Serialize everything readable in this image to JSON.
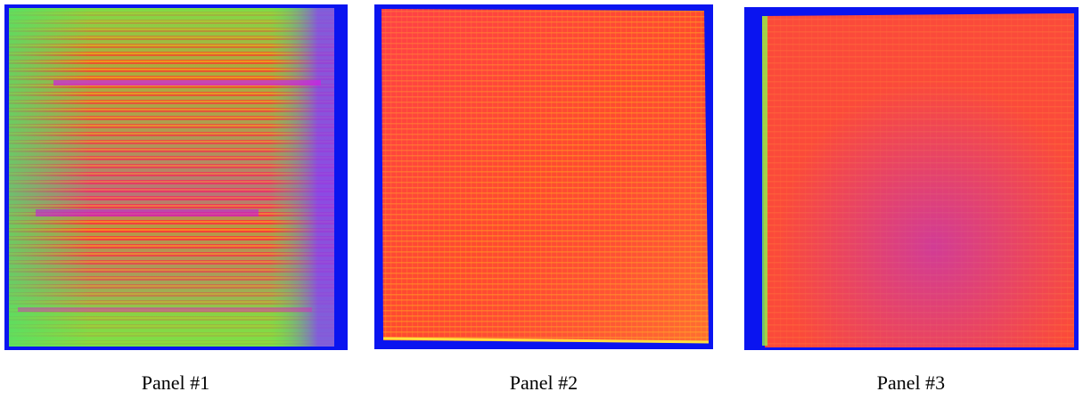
{
  "panels": [
    {
      "label": "Panel #1"
    },
    {
      "label": "Panel #2"
    },
    {
      "label": "Panel #3"
    }
  ]
}
